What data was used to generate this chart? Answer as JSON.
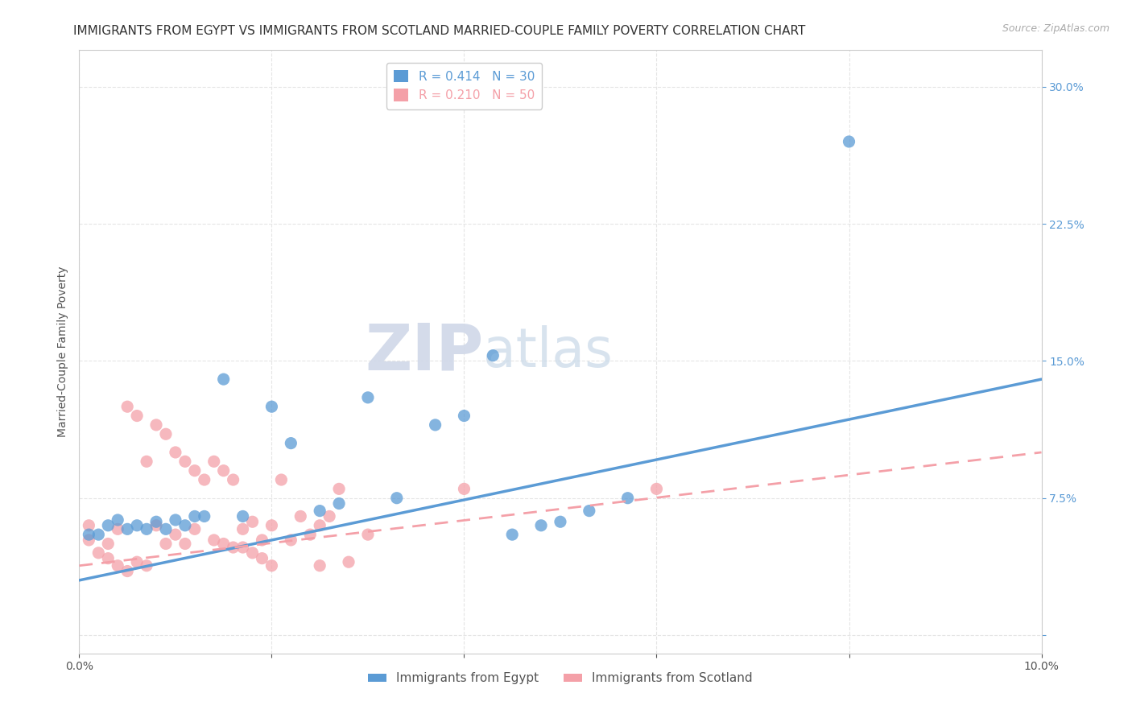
{
  "title": "IMMIGRANTS FROM EGYPT VS IMMIGRANTS FROM SCOTLAND MARRIED-COUPLE FAMILY POVERTY CORRELATION CHART",
  "source": "Source: ZipAtlas.com",
  "ylabel": "Married-Couple Family Poverty",
  "xlim": [
    0.0,
    0.1
  ],
  "ylim": [
    -0.01,
    0.32
  ],
  "xticks": [
    0.0,
    0.02,
    0.04,
    0.06,
    0.08,
    0.1
  ],
  "yticks": [
    0.0,
    0.075,
    0.15,
    0.225,
    0.3
  ],
  "egypt_color": "#5B9BD5",
  "scotland_color": "#F4A0A8",
  "egypt_R": 0.414,
  "egypt_N": 30,
  "scotland_R": 0.21,
  "scotland_N": 50,
  "watermark_zip": "ZIP",
  "watermark_atlas": "atlas",
  "legend_label_egypt": "Immigrants from Egypt",
  "legend_label_scotland": "Immigrants from Scotland",
  "egypt_scatter": [
    [
      0.001,
      0.055
    ],
    [
      0.002,
      0.055
    ],
    [
      0.003,
      0.06
    ],
    [
      0.004,
      0.063
    ],
    [
      0.005,
      0.058
    ],
    [
      0.006,
      0.06
    ],
    [
      0.007,
      0.058
    ],
    [
      0.008,
      0.062
    ],
    [
      0.009,
      0.058
    ],
    [
      0.01,
      0.063
    ],
    [
      0.011,
      0.06
    ],
    [
      0.012,
      0.065
    ],
    [
      0.013,
      0.065
    ],
    [
      0.015,
      0.14
    ],
    [
      0.017,
      0.065
    ],
    [
      0.02,
      0.125
    ],
    [
      0.022,
      0.105
    ],
    [
      0.025,
      0.068
    ],
    [
      0.027,
      0.072
    ],
    [
      0.03,
      0.13
    ],
    [
      0.033,
      0.075
    ],
    [
      0.037,
      0.115
    ],
    [
      0.04,
      0.12
    ],
    [
      0.043,
      0.153
    ],
    [
      0.045,
      0.055
    ],
    [
      0.048,
      0.06
    ],
    [
      0.05,
      0.062
    ],
    [
      0.053,
      0.068
    ],
    [
      0.057,
      0.075
    ],
    [
      0.08,
      0.27
    ]
  ],
  "scotland_scatter": [
    [
      0.001,
      0.06
    ],
    [
      0.001,
      0.052
    ],
    [
      0.002,
      0.045
    ],
    [
      0.003,
      0.05
    ],
    [
      0.003,
      0.042
    ],
    [
      0.004,
      0.038
    ],
    [
      0.004,
      0.058
    ],
    [
      0.005,
      0.035
    ],
    [
      0.005,
      0.125
    ],
    [
      0.006,
      0.12
    ],
    [
      0.006,
      0.04
    ],
    [
      0.007,
      0.095
    ],
    [
      0.007,
      0.038
    ],
    [
      0.008,
      0.115
    ],
    [
      0.008,
      0.06
    ],
    [
      0.009,
      0.11
    ],
    [
      0.009,
      0.05
    ],
    [
      0.01,
      0.1
    ],
    [
      0.01,
      0.055
    ],
    [
      0.011,
      0.095
    ],
    [
      0.011,
      0.05
    ],
    [
      0.012,
      0.09
    ],
    [
      0.012,
      0.058
    ],
    [
      0.013,
      0.085
    ],
    [
      0.014,
      0.095
    ],
    [
      0.014,
      0.052
    ],
    [
      0.015,
      0.09
    ],
    [
      0.015,
      0.05
    ],
    [
      0.016,
      0.085
    ],
    [
      0.016,
      0.048
    ],
    [
      0.017,
      0.058
    ],
    [
      0.017,
      0.048
    ],
    [
      0.018,
      0.062
    ],
    [
      0.018,
      0.045
    ],
    [
      0.019,
      0.052
    ],
    [
      0.019,
      0.042
    ],
    [
      0.02,
      0.06
    ],
    [
      0.02,
      0.038
    ],
    [
      0.021,
      0.085
    ],
    [
      0.022,
      0.052
    ],
    [
      0.023,
      0.065
    ],
    [
      0.024,
      0.055
    ],
    [
      0.025,
      0.06
    ],
    [
      0.025,
      0.038
    ],
    [
      0.026,
      0.065
    ],
    [
      0.027,
      0.08
    ],
    [
      0.028,
      0.04
    ],
    [
      0.03,
      0.055
    ],
    [
      0.04,
      0.08
    ],
    [
      0.06,
      0.08
    ]
  ],
  "egypt_line_x": [
    0.0,
    0.1
  ],
  "egypt_line_y": [
    0.03,
    0.14
  ],
  "scotland_line_x": [
    0.0,
    0.1
  ],
  "scotland_line_y": [
    0.038,
    0.1
  ],
  "grid_color": "#e5e5e5",
  "title_fontsize": 11,
  "axis_label_fontsize": 10,
  "tick_fontsize": 10,
  "legend_fontsize": 11,
  "source_fontsize": 9
}
